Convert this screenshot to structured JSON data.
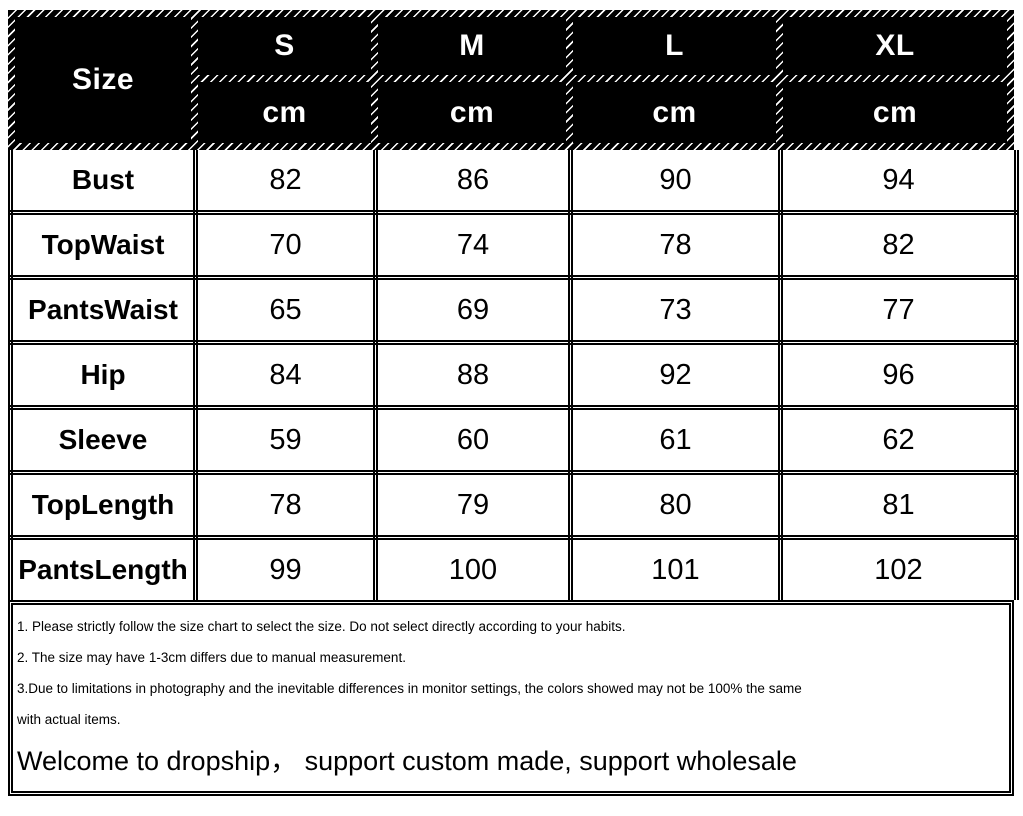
{
  "colors": {
    "header_bg": "#000000",
    "header_text": "#ffffff",
    "border": "#000000",
    "body_bg": "#ffffff",
    "body_text": "#000000"
  },
  "table": {
    "corner_label": "Size",
    "unit_label": "cm",
    "sizes": [
      "S",
      "M",
      "L",
      "XL"
    ],
    "rows": [
      {
        "label": "Bust",
        "values": [
          "82",
          "86",
          "90",
          "94"
        ]
      },
      {
        "label": "TopWaist",
        "values": [
          "70",
          "74",
          "78",
          "82"
        ]
      },
      {
        "label": "PantsWaist",
        "values": [
          "65",
          "69",
          "73",
          "77"
        ]
      },
      {
        "label": "Hip",
        "values": [
          "84",
          "88",
          "92",
          "96"
        ]
      },
      {
        "label": "Sleeve",
        "values": [
          "59",
          "60",
          "61",
          "62"
        ]
      },
      {
        "label": "TopLength",
        "values": [
          "78",
          "79",
          "80",
          "81"
        ]
      },
      {
        "label": "PantsLength",
        "values": [
          "99",
          "100",
          "101",
          "102"
        ]
      }
    ]
  },
  "notes": {
    "lines": [
      "1. Please strictly follow the size chart to select the size. Do not select directly according to your habits.",
      "2. The size may have 1-3cm differs due to manual measurement.",
      "3.Due to limitations in photography and the inevitable differences in monitor settings, the colors showed may not be 100% the same",
      "with actual items."
    ],
    "welcome": "Welcome to dropship， support custom made, support wholesale"
  }
}
